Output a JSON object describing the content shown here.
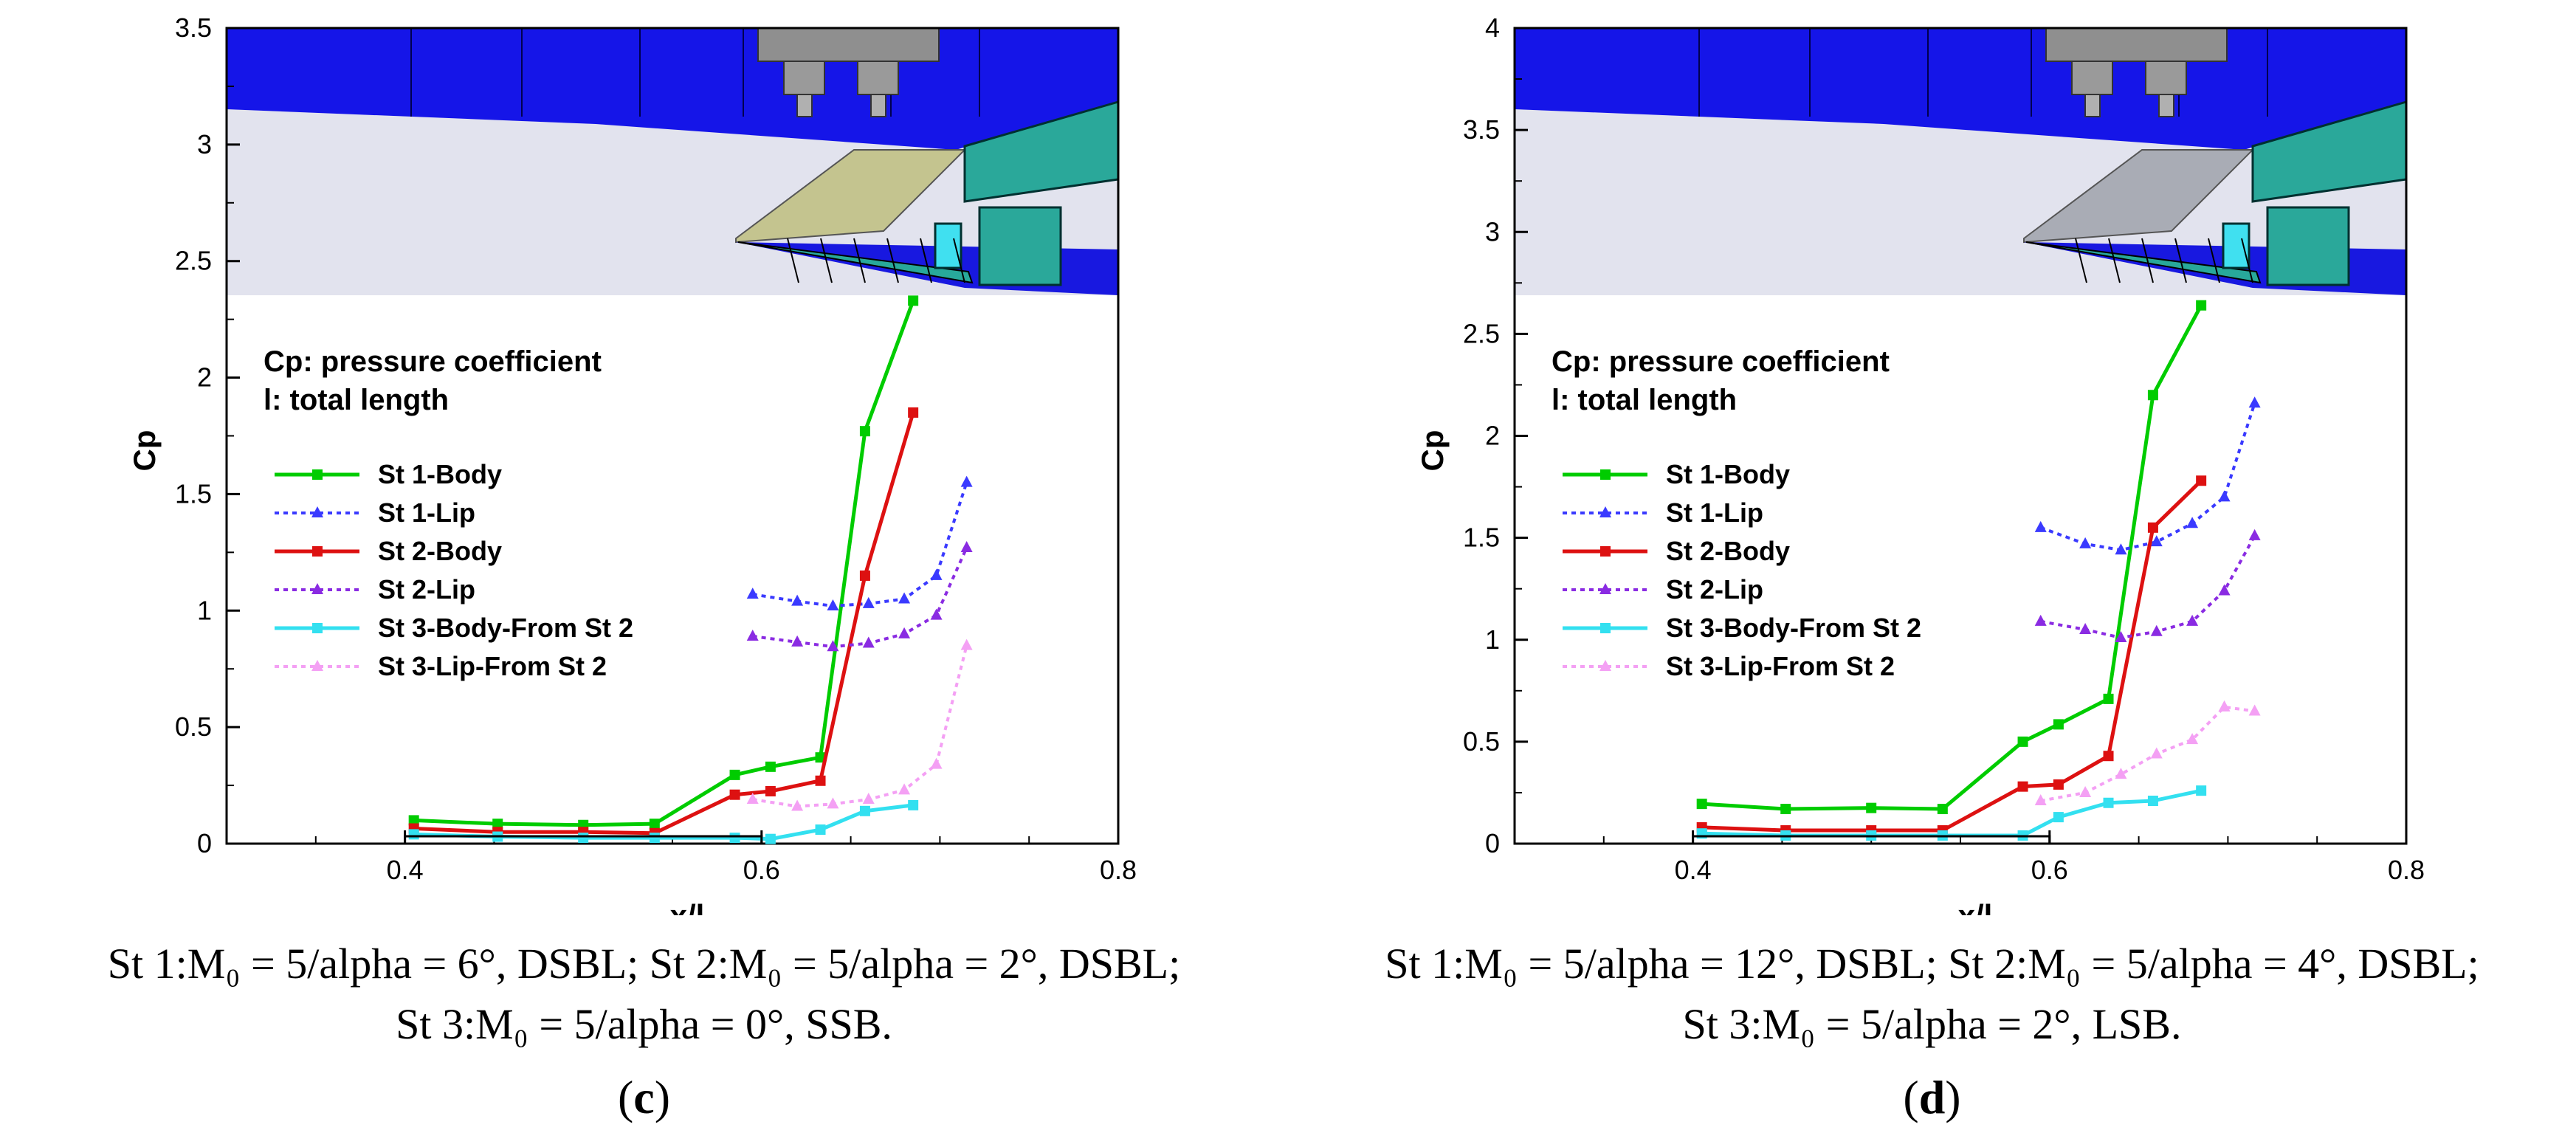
{
  "colors": {
    "body1": "#00cc00",
    "lip1": "#3a3aff",
    "body2": "#dd1111",
    "lip2": "#8a2be2",
    "body3": "#33e0f0",
    "lip3": "#f4a0f4"
  },
  "chart_data": [
    {
      "type": "line",
      "panel_label": "c",
      "xlabel": "x/l",
      "ylabel": "Cp",
      "xlim": [
        0.3,
        0.8
      ],
      "ylim": [
        0,
        3.5
      ],
      "xticks": [
        "0.4",
        "0.6",
        "0.8"
      ],
      "yticks": [
        "0",
        "0.5",
        "1",
        "1.5",
        "2",
        "2.5",
        "3",
        "3.5"
      ],
      "annotation_lines": [
        "Cp:  pressure coefficient",
        "l: total length"
      ],
      "series": [
        {
          "name": "St 1-Body",
          "style": "solid",
          "marker": "square",
          "color": "#00cc00",
          "x": [
            0.405,
            0.452,
            0.5,
            0.54,
            0.585,
            0.605,
            0.633,
            0.658,
            0.685
          ],
          "y": [
            0.1,
            0.085,
            0.08,
            0.085,
            0.295,
            0.33,
            0.37,
            1.77,
            2.33
          ]
        },
        {
          "name": "St 1-Lip",
          "style": "dotted",
          "marker": "triangle",
          "color": "#3a3aff",
          "x": [
            0.595,
            0.62,
            0.64,
            0.66,
            0.68,
            0.698,
            0.715
          ],
          "y": [
            1.07,
            1.04,
            1.02,
            1.03,
            1.05,
            1.15,
            1.55
          ]
        },
        {
          "name": "St 2-Body",
          "style": "solid",
          "marker": "square",
          "color": "#dd1111",
          "x": [
            0.405,
            0.452,
            0.5,
            0.54,
            0.585,
            0.605,
            0.633,
            0.658,
            0.685
          ],
          "y": [
            0.065,
            0.05,
            0.05,
            0.045,
            0.21,
            0.225,
            0.27,
            1.15,
            1.85
          ]
        },
        {
          "name": "St 2-Lip",
          "style": "dotted",
          "marker": "triangle",
          "color": "#8a2be2",
          "x": [
            0.595,
            0.62,
            0.64,
            0.66,
            0.68,
            0.698,
            0.715
          ],
          "y": [
            0.89,
            0.865,
            0.845,
            0.86,
            0.9,
            0.98,
            1.27
          ]
        },
        {
          "name": "St 3-Body-From St 2",
          "style": "solid",
          "marker": "square",
          "color": "#33e0f0",
          "x": [
            0.405,
            0.452,
            0.5,
            0.54,
            0.585,
            0.605,
            0.633,
            0.658,
            0.685
          ],
          "y": [
            0.04,
            0.03,
            0.025,
            0.025,
            0.025,
            0.02,
            0.06,
            0.14,
            0.165
          ]
        },
        {
          "name": "St 3-Lip-From St 2",
          "style": "dotted",
          "marker": "triangle",
          "color": "#f4a0f4",
          "x": [
            0.595,
            0.62,
            0.64,
            0.66,
            0.68,
            0.698,
            0.715
          ],
          "y": [
            0.19,
            0.16,
            0.17,
            0.19,
            0.23,
            0.34,
            0.85
          ]
        }
      ],
      "caption_lines": [
        "St 1:M₀ = 5/alpha = 6°, DSBL; St 2:M₀ = 5/alpha = 2°, DSBL;",
        "St 3:M₀ = 5/alpha = 0°, SSB."
      ]
    },
    {
      "type": "line",
      "panel_label": "d",
      "xlabel": "x/l",
      "ylabel": "Cp",
      "xlim": [
        0.3,
        0.8
      ],
      "ylim": [
        0,
        4
      ],
      "xticks": [
        "0.4",
        "0.6",
        "0.8"
      ],
      "yticks": [
        "0",
        "0.5",
        "1",
        "1.5",
        "2",
        "2.5",
        "3",
        "3.5",
        "4"
      ],
      "annotation_lines": [
        "Cp:  pressure coefficient",
        "l: total length"
      ],
      "series": [
        {
          "name": "St 1-Body",
          "style": "solid",
          "marker": "square",
          "color": "#00cc00",
          "x": [
            0.405,
            0.452,
            0.5,
            0.54,
            0.585,
            0.605,
            0.633,
            0.658,
            0.685
          ],
          "y": [
            0.195,
            0.17,
            0.175,
            0.17,
            0.5,
            0.585,
            0.71,
            2.2,
            2.64
          ]
        },
        {
          "name": "St 1-Lip",
          "style": "dotted",
          "marker": "triangle",
          "color": "#3a3aff",
          "x": [
            0.595,
            0.62,
            0.64,
            0.66,
            0.68,
            0.698,
            0.715
          ],
          "y": [
            1.55,
            1.47,
            1.44,
            1.48,
            1.57,
            1.7,
            2.16
          ]
        },
        {
          "name": "St 2-Body",
          "style": "solid",
          "marker": "square",
          "color": "#dd1111",
          "x": [
            0.405,
            0.452,
            0.5,
            0.54,
            0.585,
            0.605,
            0.633,
            0.658,
            0.685
          ],
          "y": [
            0.08,
            0.065,
            0.065,
            0.065,
            0.28,
            0.29,
            0.43,
            1.55,
            1.78
          ]
        },
        {
          "name": "St 2-Lip",
          "style": "dotted",
          "marker": "triangle",
          "color": "#8a2be2",
          "x": [
            0.595,
            0.62,
            0.64,
            0.66,
            0.68,
            0.698,
            0.715
          ],
          "y": [
            1.09,
            1.05,
            1.01,
            1.04,
            1.09,
            1.24,
            1.51
          ]
        },
        {
          "name": "St 3-Body-From St 2",
          "style": "solid",
          "marker": "square",
          "color": "#33e0f0",
          "x": [
            0.405,
            0.452,
            0.5,
            0.54,
            0.585,
            0.605,
            0.633,
            0.658,
            0.685
          ],
          "y": [
            0.05,
            0.04,
            0.04,
            0.04,
            0.04,
            0.13,
            0.2,
            0.21,
            0.26
          ]
        },
        {
          "name": "St 3-Lip-From St 2",
          "style": "dotted",
          "marker": "triangle",
          "color": "#f4a0f4",
          "x": [
            0.595,
            0.62,
            0.64,
            0.66,
            0.68,
            0.698,
            0.715
          ],
          "y": [
            0.21,
            0.25,
            0.34,
            0.44,
            0.51,
            0.67,
            0.65
          ]
        }
      ],
      "caption_lines": [
        "St 1:M₀ = 5/alpha = 12°, DSBL; St 2:M₀ = 5/alpha = 4°, DSBL;",
        "St 3:M₀ = 5/alpha = 2°, LSB."
      ]
    }
  ]
}
